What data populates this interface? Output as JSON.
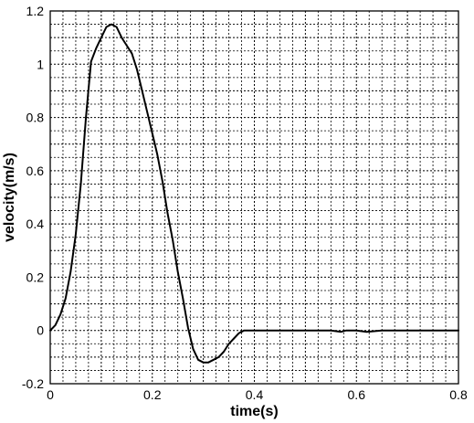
{
  "chart_data": {
    "type": "line",
    "title": "",
    "xlabel": "time(s)",
    "ylabel": "velocity(m/s)",
    "xlim": [
      0,
      0.8
    ],
    "ylim": [
      -0.2,
      1.2
    ],
    "x_ticks": [
      "0",
      "0.2",
      "0.4",
      "0.6",
      "0.8"
    ],
    "y_ticks": [
      "-0.2",
      "0",
      "0.2",
      "0.4",
      "0.6",
      "0.8",
      "1",
      "1.2"
    ],
    "grid": true,
    "series": [
      {
        "x": [
          0,
          0.01,
          0.02,
          0.03,
          0.04,
          0.05,
          0.06,
          0.07,
          0.08,
          0.09,
          0.1,
          0.11,
          0.12,
          0.13,
          0.14,
          0.15,
          0.16,
          0.17,
          0.18,
          0.19,
          0.2,
          0.21,
          0.22,
          0.23,
          0.24,
          0.25,
          0.26,
          0.27,
          0.28,
          0.29,
          0.3,
          0.31,
          0.32,
          0.33,
          0.34,
          0.35,
          0.36,
          0.37,
          0.38,
          0.39,
          0.4,
          0.45,
          0.5,
          0.55,
          0.57,
          0.58,
          0.6,
          0.62,
          0.65,
          0.7,
          0.75,
          0.8
        ],
        "y": [
          0.0,
          0.02,
          0.06,
          0.12,
          0.22,
          0.36,
          0.55,
          0.8,
          1.01,
          1.06,
          1.1,
          1.14,
          1.15,
          1.14,
          1.1,
          1.07,
          1.04,
          0.98,
          0.9,
          0.82,
          0.74,
          0.66,
          0.56,
          0.44,
          0.34,
          0.22,
          0.12,
          0.01,
          -0.07,
          -0.11,
          -0.12,
          -0.12,
          -0.11,
          -0.1,
          -0.08,
          -0.05,
          -0.03,
          -0.01,
          0.0,
          0.0,
          0.0,
          0.0,
          0.0,
          0.0,
          -0.005,
          0.0,
          0.0,
          -0.005,
          0.0,
          0.0,
          0.0,
          0.0
        ]
      }
    ]
  }
}
